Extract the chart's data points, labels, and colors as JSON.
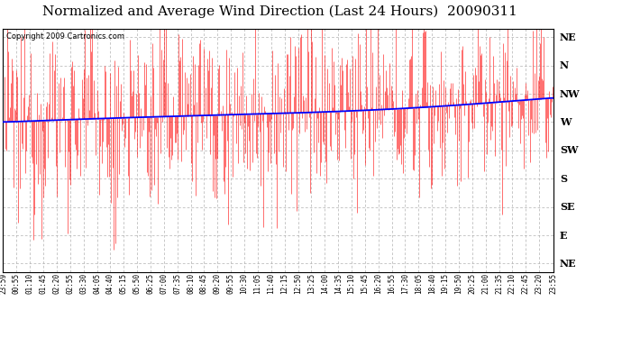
{
  "title": "Normalized and Average Wind Direction (Last 24 Hours)  20090311",
  "copyright": "Copyright 2009 Cartronics.com",
  "background_color": "#ffffff",
  "plot_bg_color": "#ffffff",
  "y_labels": [
    "NE",
    "N",
    "NW",
    "W",
    "SW",
    "S",
    "SE",
    "E",
    "NE"
  ],
  "y_ticks": [
    8,
    7,
    6,
    5,
    4,
    3,
    2,
    1,
    0
  ],
  "ylim": [
    -0.3,
    8.3
  ],
  "x_tick_labels": [
    "23:59",
    "00:55",
    "01:10",
    "01:45",
    "02:20",
    "02:55",
    "03:30",
    "04:05",
    "04:40",
    "05:15",
    "05:50",
    "06:25",
    "07:00",
    "07:35",
    "08:10",
    "08:45",
    "09:20",
    "09:55",
    "10:30",
    "11:05",
    "11:40",
    "12:15",
    "12:50",
    "13:25",
    "14:00",
    "14:35",
    "15:10",
    "15:45",
    "16:20",
    "16:55",
    "17:30",
    "18:05",
    "18:40",
    "19:15",
    "19:50",
    "20:25",
    "21:00",
    "21:35",
    "22:10",
    "22:45",
    "23:20",
    "23:55"
  ],
  "red_color": "#ff0000",
  "blue_color": "#0000ff",
  "grid_color": "#b0b0b0",
  "title_fontsize": 11,
  "copyright_fontsize": 6,
  "tick_fontsize": 5.5,
  "ylabel_fontsize": 8,
  "n_points": 576
}
